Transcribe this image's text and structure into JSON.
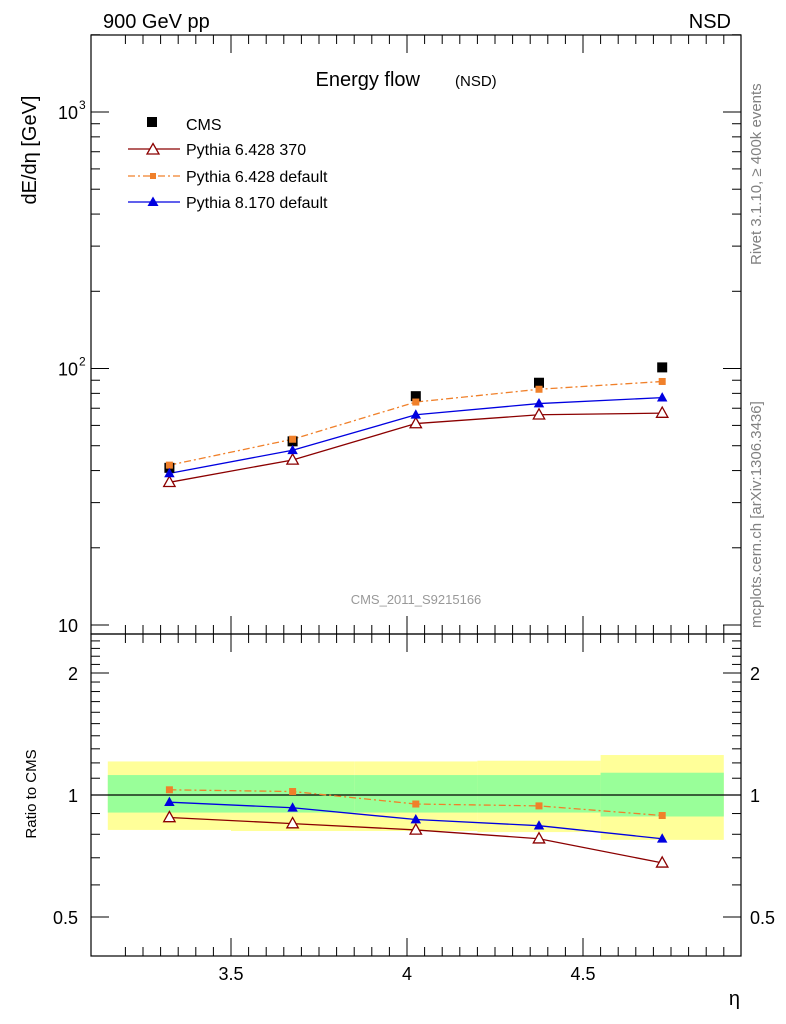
{
  "header": {
    "left": "900 GeV pp",
    "right": "NSD"
  },
  "side_text": {
    "upper": "Rivet 3.1.10, ≥ 400k events",
    "lower": "mcplots.cern.ch [arXiv:1306.3436]"
  },
  "watermark": "CMS_2011_S9215166",
  "colors": {
    "cms": "#000000",
    "py6_370": "#8b0000",
    "py6_default": "#f0802a",
    "py8_default": "#0000e0",
    "band_inner": "#99ff99",
    "band_outer": "#ffff99"
  },
  "chart_data": [
    {
      "type": "scatter",
      "title": "Energy flow",
      "title_suffix": "(NSD)",
      "ylabel": "dE/dη [GeV]",
      "yscale": "log",
      "ylim": [
        10,
        2000
      ],
      "xlim": [
        3.15,
        4.9
      ],
      "ytick_labels": [
        "10",
        "10",
        "10"
      ],
      "ytick_exponents": [
        "",
        "2",
        "3"
      ],
      "legend_position": "top-left",
      "x": [
        3.325,
        3.675,
        4.025,
        4.375,
        4.725
      ],
      "series": [
        {
          "name": "CMS",
          "marker": "square",
          "values": [
            41,
            52,
            78,
            88,
            101
          ]
        },
        {
          "name": "Pythia 6.428 370",
          "marker": "open-triangle",
          "line": "solid",
          "values": [
            36,
            44,
            61,
            66,
            67
          ]
        },
        {
          "name": "Pythia 6.428 default",
          "marker": "small-square",
          "line": "dashdot",
          "values": [
            42,
            53,
            74,
            83,
            89
          ]
        },
        {
          "name": "Pythia 8.170 default",
          "marker": "triangle",
          "line": "solid",
          "values": [
            39,
            48,
            66,
            73,
            77
          ]
        }
      ]
    },
    {
      "type": "scatter",
      "ylabel": "Ratio to CMS",
      "xlabel": "η",
      "yscale": "log",
      "ylim": [
        0.4,
        2.5
      ],
      "xlim": [
        3.15,
        4.9
      ],
      "xtick_labels": [
        "3.5",
        "4",
        "4.5"
      ],
      "ytick_labels": [
        "0.5",
        "1",
        "2"
      ],
      "reference_line": 1,
      "bands": [
        {
          "x": [
            3.15,
            3.5
          ],
          "inner": [
            0.905,
            1.12
          ],
          "outer": [
            0.82,
            1.21
          ]
        },
        {
          "x": [
            3.5,
            3.85
          ],
          "inner": [
            0.905,
            1.12
          ],
          "outer": [
            0.815,
            1.21
          ]
        },
        {
          "x": [
            3.85,
            4.2
          ],
          "inner": [
            0.905,
            1.12
          ],
          "outer": [
            0.815,
            1.21
          ]
        },
        {
          "x": [
            4.2,
            4.55
          ],
          "inner": [
            0.905,
            1.12
          ],
          "outer": [
            0.81,
            1.215
          ]
        },
        {
          "x": [
            4.55,
            4.9
          ],
          "inner": [
            0.885,
            1.135
          ],
          "outer": [
            0.775,
            1.255
          ]
        }
      ],
      "x": [
        3.325,
        3.675,
        4.025,
        4.375,
        4.725
      ],
      "series": [
        {
          "name": "Pythia 6.428 370",
          "values": [
            0.88,
            0.85,
            0.82,
            0.78,
            0.68
          ]
        },
        {
          "name": "Pythia 6.428 default",
          "values": [
            1.03,
            1.02,
            0.95,
            0.94,
            0.89
          ]
        },
        {
          "name": "Pythia 8.170 default",
          "values": [
            0.96,
            0.93,
            0.87,
            0.84,
            0.78
          ]
        }
      ]
    }
  ]
}
